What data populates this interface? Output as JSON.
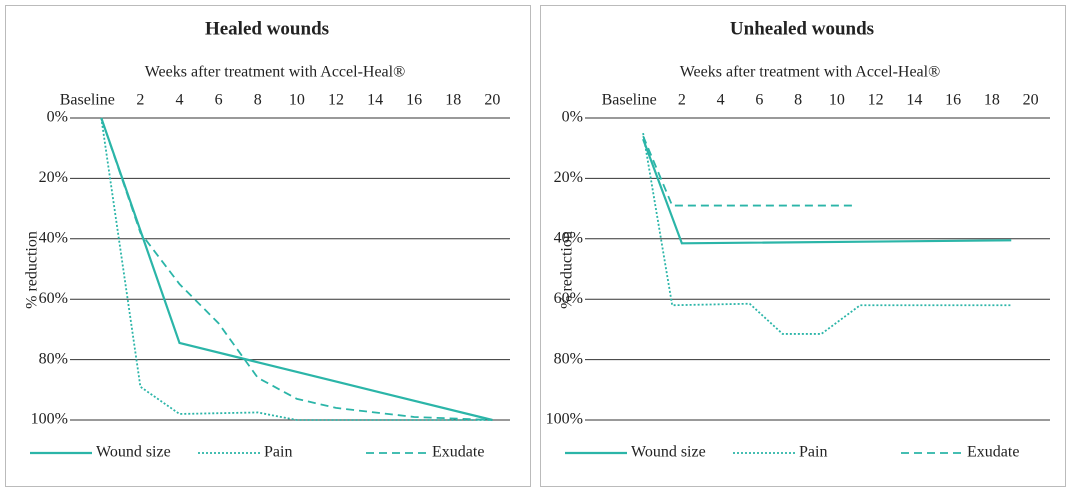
{
  "chart_data": [
    {
      "type": "line",
      "title": "Healed wounds",
      "subtitle": "Weeks after treatment with Accel-Heal®",
      "y_label": "% reduction",
      "xlim": [
        -1.6,
        20.9
      ],
      "xticks": [
        {
          "value": 0,
          "label": "Baseline"
        },
        2,
        4,
        6,
        8,
        10,
        12,
        14,
        16,
        18,
        20
      ],
      "ylim": [
        0,
        100
      ],
      "y_inverted": true,
      "yticks": [
        {
          "value": 0,
          "label": "0%"
        },
        {
          "value": 20,
          "label": "20%"
        },
        {
          "value": 40,
          "label": "40%"
        },
        {
          "value": 60,
          "label": "60%"
        },
        {
          "value": 80,
          "label": "80%"
        },
        {
          "value": 100,
          "label": "100%"
        }
      ],
      "grid": true,
      "legend": "bottom",
      "series": [
        {
          "name": "Wound size",
          "color": "#2bb5a8",
          "style": "solid",
          "x": [
            0,
            4,
            20
          ],
          "values": [
            0,
            74.5,
            100
          ]
        },
        {
          "name": "Pain",
          "color": "#2bb5a8",
          "style": "dotted",
          "x": [
            0,
            2,
            4,
            8,
            10,
            20
          ],
          "values": [
            0,
            89,
            98,
            97.5,
            100,
            100
          ]
        },
        {
          "name": "Exudate",
          "color": "#2bb5a8",
          "style": "dashed",
          "x": [
            0,
            2,
            4,
            6,
            8,
            10,
            12,
            16,
            20
          ],
          "values": [
            0,
            38,
            55,
            68,
            86,
            93,
            96,
            99,
            100
          ]
        }
      ]
    },
    {
      "type": "line",
      "title": "Unhealed wounds",
      "subtitle": "Weeks after treatment with Accel-Heal®",
      "y_label": "% reduction",
      "xlim": [
        -3,
        21
      ],
      "xticks": [
        {
          "value": 0,
          "label": "Baseline"
        },
        2,
        4,
        6,
        8,
        10,
        12,
        14,
        16,
        18,
        20
      ],
      "ylim": [
        0,
        100
      ],
      "y_inverted": true,
      "yticks": [
        {
          "value": 0,
          "label": "0%"
        },
        {
          "value": 20,
          "label": "20%"
        },
        {
          "value": 40,
          "label": "40%"
        },
        {
          "value": 60,
          "label": "60%"
        },
        {
          "value": 80,
          "label": "80%"
        },
        {
          "value": 100,
          "label": "100%"
        }
      ],
      "grid": true,
      "legend": "bottom",
      "series": [
        {
          "name": "Wound size",
          "color": "#2bb5a8",
          "style": "solid",
          "x": [
            0,
            2,
            19
          ],
          "values": [
            7,
            41.5,
            40.5
          ]
        },
        {
          "name": "Pain",
          "color": "#2bb5a8",
          "style": "dotted",
          "x": [
            0,
            1.5,
            5.5,
            7.2,
            9.2,
            11.2,
            19
          ],
          "values": [
            5,
            62,
            61.5,
            71.5,
            71.5,
            62,
            62
          ]
        },
        {
          "name": "Exudate",
          "color": "#2bb5a8",
          "style": "dashed",
          "x": [
            0,
            1.5,
            11
          ],
          "values": [
            6,
            29,
            29
          ]
        }
      ]
    }
  ]
}
